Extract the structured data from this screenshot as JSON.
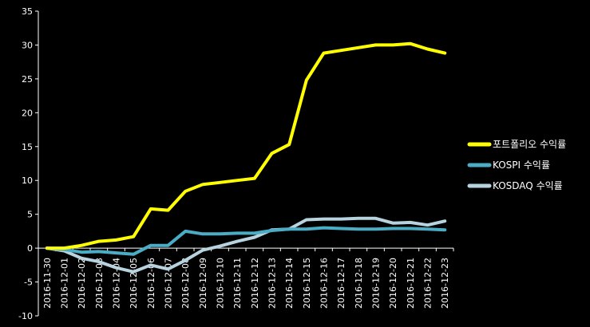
{
  "chart_data": {
    "type": "line",
    "title": "",
    "xlabel": "",
    "ylabel": "",
    "ylim": [
      -10,
      35
    ],
    "yticks": [
      -10,
      -5,
      0,
      5,
      10,
      15,
      20,
      25,
      30,
      35
    ],
    "grid": false,
    "legend_position": "right",
    "background": "#000000",
    "axis_color": "#ffffff",
    "x": [
      "2016-11-30",
      "2016-12-01",
      "2016-12-02",
      "2016-12-03",
      "2016-12-04",
      "2016-12-05",
      "2016-12-06",
      "2016-12-07",
      "2016-12-08",
      "2016-12-09",
      "2016-12-10",
      "2016-12-11",
      "2016-12-12",
      "2016-12-13",
      "2016-12-14",
      "2016-12-15",
      "2016-12-16",
      "2016-12-17",
      "2016-12-18",
      "2016-12-19",
      "2016-12-20",
      "2016-12-21",
      "2016-12-22",
      "2016-12-23"
    ],
    "series": [
      {
        "name": "포트폴리오 수익률",
        "color": "#ffff00",
        "values": [
          0,
          0,
          0.4,
          1.0,
          1.2,
          1.7,
          5.8,
          5.6,
          8.4,
          9.4,
          9.7,
          10.0,
          10.3,
          14.0,
          15.3,
          24.8,
          28.8,
          29.2,
          29.6,
          30.0,
          30.0,
          30.2,
          29.4,
          28.8
        ]
      },
      {
        "name": "KOSPI 수익률",
        "color": "#4bacc6",
        "values": [
          0,
          -0.2,
          -0.6,
          -0.5,
          -0.7,
          -0.9,
          0.4,
          0.4,
          2.5,
          2.1,
          2.1,
          2.2,
          2.2,
          2.6,
          2.8,
          2.8,
          3.0,
          2.9,
          2.8,
          2.8,
          2.9,
          2.9,
          2.8,
          2.7
        ]
      },
      {
        "name": "KOSDAQ 수익률",
        "color": "#b7d3df",
        "values": [
          0,
          -0.4,
          -1.5,
          -2.0,
          -2.9,
          -3.5,
          -2.5,
          -3.1,
          -1.8,
          -0.3,
          0.3,
          1.0,
          1.6,
          2.7,
          2.8,
          4.2,
          4.3,
          4.3,
          4.4,
          4.4,
          3.7,
          3.8,
          3.4,
          4.0
        ]
      }
    ]
  }
}
